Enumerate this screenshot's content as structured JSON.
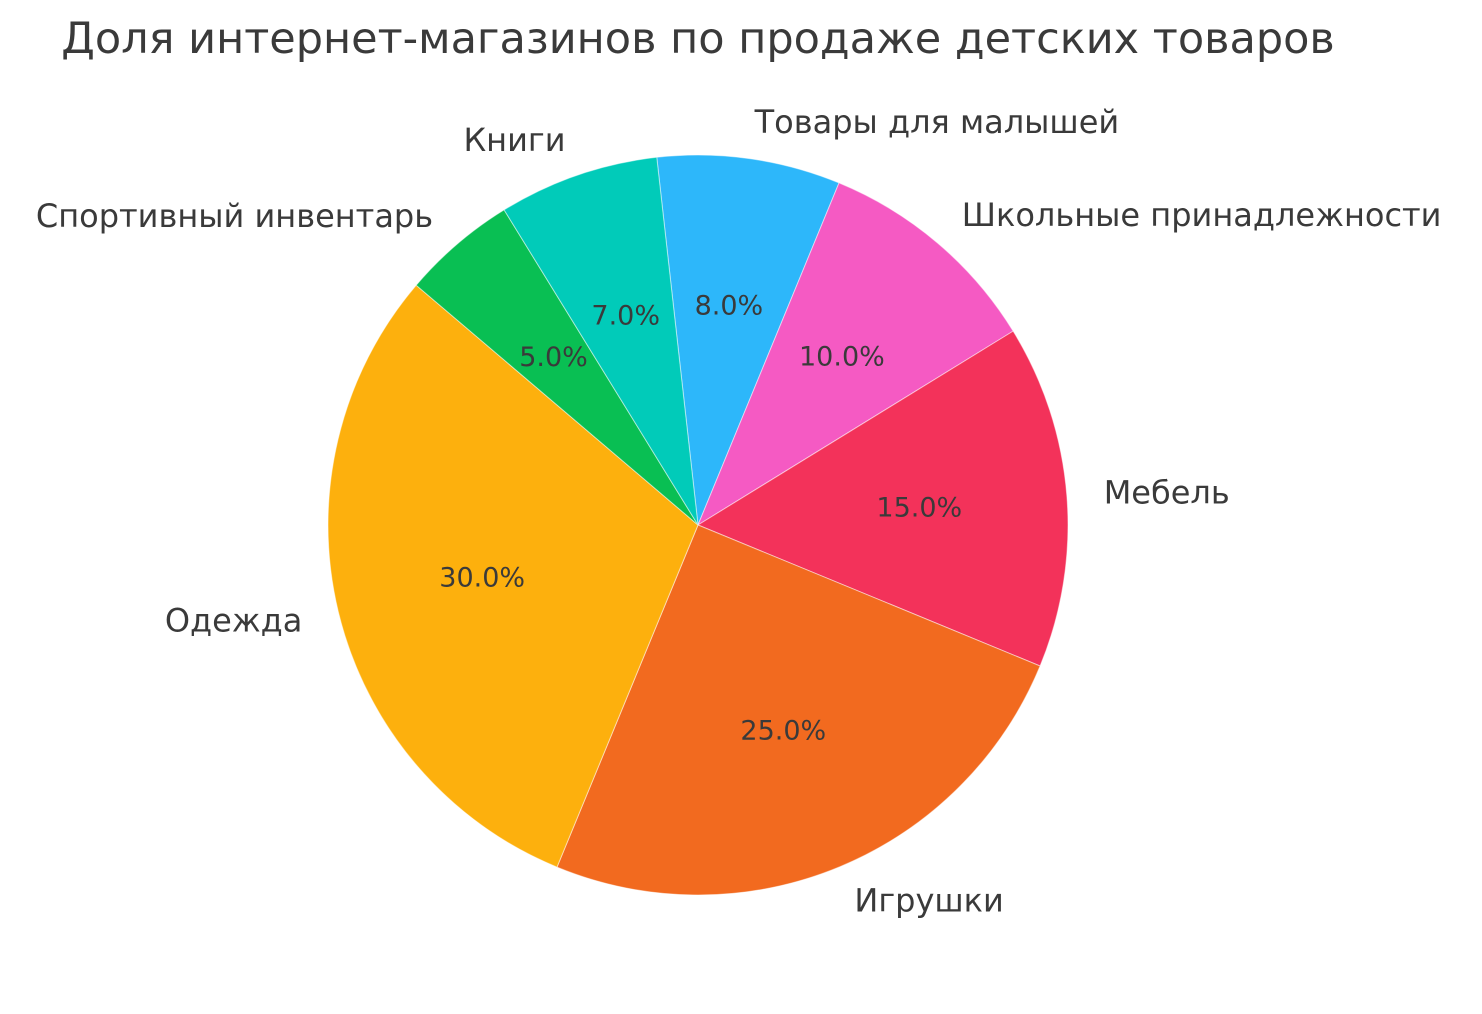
{
  "title": "Доля интернет-магазинов по продаже детских товаров",
  "text_color": "#3a3a3a",
  "background_color": "#ffffff",
  "chart_data": {
    "type": "pie",
    "title": "Доля интернет-магазинов по продаже детских товаров",
    "labels": [
      "Товары для малышей",
      "Школьные принадлежности",
      "Мебель",
      "Игрушки",
      "Одежда",
      "Спортивный инвентарь",
      "Книги"
    ],
    "values": [
      8.0,
      10.0,
      15.0,
      25.0,
      30.0,
      5.0,
      7.0
    ],
    "percent_labels": [
      "8.0%",
      "10.0%",
      "15.0%",
      "25.0%",
      "30.0%",
      "5.0%",
      "7.0%"
    ],
    "colors": [
      "#2DB7FA",
      "#F55AC3",
      "#F3325A",
      "#F26A1F",
      "#FDB00D",
      "#09BF53",
      "#01CBB9"
    ],
    "start_angle_deg": 96.4,
    "direction": "clockwise",
    "legend": "none",
    "grid": false,
    "label_distance": 1.1,
    "pct_distance": 0.6
  }
}
